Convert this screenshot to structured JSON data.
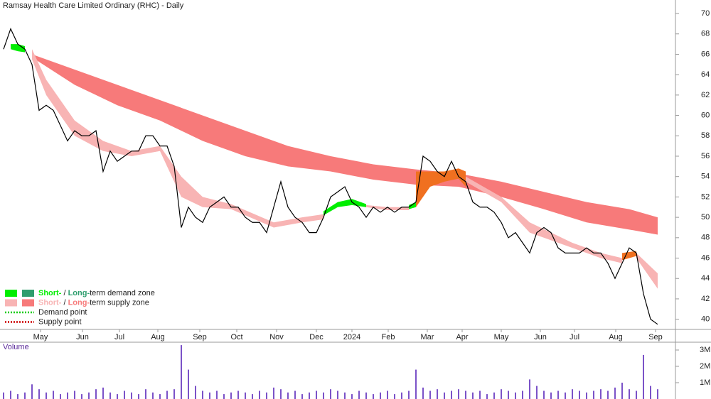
{
  "chart_data": {
    "type": "line",
    "title": "Ramsay Health Care Limited Ordinary (RHC) - Daily",
    "xlim": [
      -0.5,
      94.5
    ],
    "xticks": [
      {
        "value": 5.2,
        "label": "May"
      },
      {
        "value": 11.1,
        "label": "Jun"
      },
      {
        "value": 16.3,
        "label": "Jul"
      },
      {
        "value": 21.7,
        "label": "Aug"
      },
      {
        "value": 27.6,
        "label": "Sep"
      },
      {
        "value": 32.8,
        "label": "Oct"
      },
      {
        "value": 38.4,
        "label": "Nov"
      },
      {
        "value": 44,
        "label": "Dec"
      },
      {
        "value": 49,
        "label": "2024"
      },
      {
        "value": 54.1,
        "label": "Feb"
      },
      {
        "value": 59.6,
        "label": "Mar"
      },
      {
        "value": 64.5,
        "label": "Apr"
      },
      {
        "value": 70,
        "label": "May"
      },
      {
        "value": 75.5,
        "label": "Jun"
      },
      {
        "value": 80.3,
        "label": "Jul"
      },
      {
        "value": 86.1,
        "label": "Aug"
      },
      {
        "value": 91.7,
        "label": "Sep"
      }
    ],
    "ylim": [
      39,
      70.4
    ],
    "yticks": [
      40,
      42,
      44,
      46,
      48,
      50,
      52,
      54,
      56,
      58,
      60,
      62,
      64,
      66,
      68,
      70
    ],
    "color": "#000000",
    "values": [
      66.5,
      68.5,
      67,
      66.5,
      65,
      60.5,
      61,
      60.5,
      59,
      57.5,
      58.5,
      58,
      58,
      58.5,
      54.5,
      56.5,
      55.5,
      56,
      56.5,
      56.5,
      58,
      58,
      57,
      57,
      55,
      49,
      51,
      50,
      49.5,
      51,
      51.5,
      52,
      51,
      51,
      50,
      49.5,
      49.5,
      48.5,
      51,
      53.5,
      51,
      50,
      49.5,
      48.5,
      48.5,
      50,
      52,
      52.5,
      53,
      51.5,
      51,
      50,
      51,
      50.5,
      51,
      50.5,
      51,
      51,
      51.5,
      56,
      55.5,
      54.5,
      54,
      55.5,
      54,
      53.5,
      51.5,
      51,
      51,
      50.5,
      49.5,
      48,
      48.5,
      47.5,
      46.5,
      48.5,
      49,
      48.5,
      47,
      46.5,
      46.5,
      46.5,
      47,
      46.5,
      46.5,
      45.5,
      44,
      45.5,
      47,
      46.5,
      42.5,
      40,
      39.5
    ],
    "long_term_zone": {
      "color": "#f77a7a",
      "x": [
        4,
        10,
        16,
        22,
        28,
        34,
        40,
        46,
        52,
        58,
        64,
        70,
        76,
        82,
        88,
        92
      ],
      "upper": [
        66,
        64.5,
        63,
        61.5,
        60,
        58.5,
        57,
        56,
        55.2,
        54.7,
        54.3,
        53.5,
        52.5,
        51.5,
        50.8,
        50
      ],
      "lower": [
        65.7,
        63,
        61,
        59.5,
        57.5,
        56,
        55,
        54.5,
        53.7,
        53.2,
        53,
        52,
        50.8,
        49.5,
        48.8,
        48.3
      ]
    },
    "short_term_zones": [
      {
        "color": "#00ee00",
        "x": [
          1,
          2,
          3
        ],
        "upper": [
          67,
          67,
          66.8
        ],
        "lower": [
          66.5,
          66.3,
          66.2
        ]
      },
      {
        "color": "#f8b4b4",
        "x": [
          4,
          6,
          10,
          14,
          18,
          22,
          25,
          28,
          32,
          38,
          42,
          45
        ],
        "upper": [
          66.5,
          63.5,
          59.5,
          57.5,
          56.5,
          57,
          54,
          52,
          51.3,
          49.5,
          50,
          50.3
        ],
        "lower": [
          65.5,
          62,
          58,
          56.5,
          56,
          56.5,
          52,
          51,
          50.8,
          49,
          49.5,
          49.8
        ]
      },
      {
        "color": "#00ee00",
        "x": [
          45,
          47,
          49,
          51
        ],
        "upper": [
          50.6,
          51.5,
          51.8,
          51.3
        ],
        "lower": [
          50.2,
          51,
          51.2,
          51
        ]
      },
      {
        "color": "#f8b4b4",
        "x": [
          51,
          54,
          57
        ],
        "upper": [
          51.2,
          51,
          51
        ],
        "lower": [
          51,
          50.7,
          50.7
        ]
      },
      {
        "color": "#00ee00",
        "x": [
          57,
          58
        ],
        "upper": [
          51.2,
          51.5
        ],
        "lower": [
          50.8,
          51
        ]
      },
      {
        "color": "#f07020",
        "x": [
          58,
          60,
          62,
          64,
          65
        ],
        "upper": [
          54.5,
          54.5,
          54.5,
          54.8,
          54.5
        ],
        "lower": [
          51,
          53,
          53.5,
          53.8,
          53
        ]
      },
      {
        "color": "#f8b4b4",
        "x": [
          65,
          70,
          74,
          80,
          84,
          87
        ],
        "upper": [
          54,
          52,
          49.5,
          47.5,
          46.5,
          46
        ],
        "lower": [
          53.5,
          51.5,
          48.5,
          47,
          46,
          45.5
        ]
      },
      {
        "color": "#f07020",
        "x": [
          87,
          89
        ],
        "upper": [
          46.5,
          46.7
        ],
        "lower": [
          45.8,
          46.2
        ]
      },
      {
        "color": "#f8b4b4",
        "x": [
          89,
          92
        ],
        "upper": [
          46.5,
          44.5
        ],
        "lower": [
          46,
          43
        ]
      }
    ],
    "legend": [
      {
        "colors": [
          "#00ee00",
          "#2e9e6e"
        ],
        "parts": [
          "Short-",
          " / ",
          "Long-",
          "term demand zone"
        ]
      },
      {
        "colors": [
          "#f8b4b4",
          "#f77a7a"
        ],
        "parts": [
          "Short-",
          " / ",
          "Long-",
          "term supply zone"
        ]
      },
      {
        "dot_color": "#00cc00",
        "text": "Demand point"
      },
      {
        "dot_color": "#cc0000",
        "text": "Supply point"
      }
    ],
    "volume": {
      "label": "Volume",
      "color": "#7b52c8",
      "ylim": [
        0,
        3.5
      ],
      "yticks": [
        {
          "value": 1,
          "label": "1M"
        },
        {
          "value": 2,
          "label": "2M"
        },
        {
          "value": 3,
          "label": "3M"
        }
      ],
      "values": [
        0.4,
        0.5,
        0.3,
        0.4,
        0.9,
        0.6,
        0.4,
        0.5,
        0.3,
        0.4,
        0.5,
        0.3,
        0.4,
        0.6,
        0.7,
        0.4,
        0.3,
        0.5,
        0.4,
        0.3,
        0.6,
        0.4,
        0.3,
        0.5,
        0.6,
        3.3,
        1.8,
        0.8,
        0.5,
        0.4,
        0.5,
        0.3,
        0.4,
        0.5,
        0.4,
        0.3,
        0.5,
        0.4,
        0.7,
        0.6,
        0.4,
        0.5,
        0.3,
        0.4,
        0.5,
        0.4,
        0.6,
        0.5,
        0.4,
        0.3,
        0.5,
        0.4,
        0.3,
        0.4,
        0.5,
        0.3,
        0.4,
        0.5,
        1.8,
        0.7,
        0.5,
        0.6,
        0.4,
        0.5,
        0.6,
        0.5,
        0.4,
        0.5,
        0.3,
        0.4,
        0.6,
        0.5,
        0.4,
        0.5,
        1.2,
        0.8,
        0.5,
        0.4,
        0.5,
        0.4,
        0.6,
        0.5,
        0.4,
        0.5,
        0.6,
        0.5,
        0.7,
        1.0,
        0.6,
        0.5,
        2.7,
        0.8,
        0.6
      ]
    }
  }
}
